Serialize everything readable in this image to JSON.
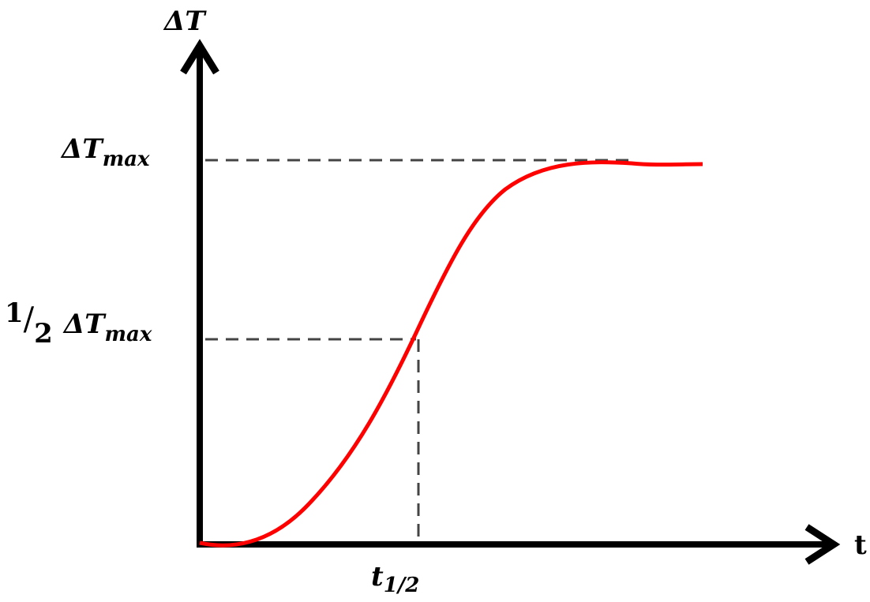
{
  "y_axis": {
    "label": "ΔT"
  },
  "x_axis": {
    "label": "t"
  },
  "levels": [
    {
      "symbol": "ΔT",
      "subscript": "max"
    },
    {
      "numerator": "1",
      "slash": "/",
      "denominator": "2",
      "symbol": "ΔT",
      "subscript": "max"
    }
  ],
  "marker": {
    "symbol": "t",
    "subscript": "1/2"
  }
}
